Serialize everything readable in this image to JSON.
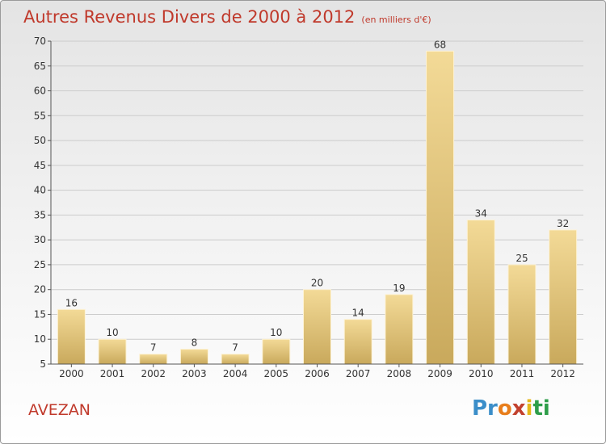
{
  "header": {
    "title": "Autres Revenus Divers de 2000 à 2012",
    "subtitle": "(en milliers d'€)"
  },
  "location": "AVEZAN",
  "logo": {
    "parts": [
      "Pr",
      "o",
      "x",
      "i",
      "ti"
    ]
  },
  "colors": {
    "title": "#c0392b",
    "bar_light": "#f3da97",
    "bar_dark": "#c9a95c",
    "grid": "#cccccc"
  },
  "chart_data": {
    "type": "bar",
    "title": "Autres Revenus Divers de 2000 à 2012",
    "subtitle": "(en milliers d'€)",
    "categories": [
      "2000",
      "2001",
      "2002",
      "2003",
      "2004",
      "2005",
      "2006",
      "2007",
      "2008",
      "2009",
      "2010",
      "2011",
      "2012"
    ],
    "values": [
      16,
      10,
      7,
      8,
      7,
      10,
      20,
      14,
      19,
      68,
      34,
      25,
      32
    ],
    "ylim": [
      5,
      70
    ],
    "yticks": [
      5,
      10,
      15,
      20,
      25,
      30,
      35,
      40,
      45,
      50,
      55,
      60,
      65,
      70
    ],
    "grid": true,
    "data_labels": true
  }
}
